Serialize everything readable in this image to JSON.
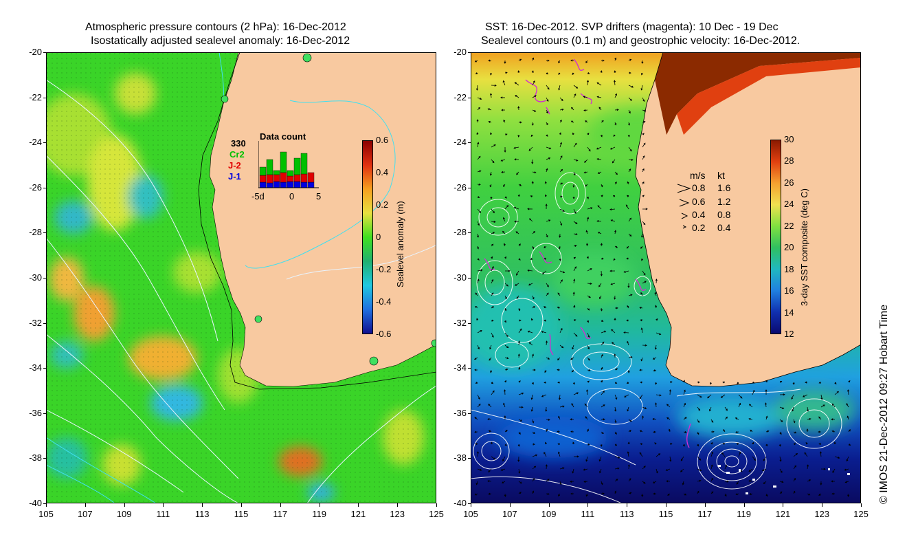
{
  "left_panel": {
    "title_line1": "Atmospheric pressure contours (2 hPa): 16-Dec-2012",
    "title_line2": "Isostatically adjusted sealevel anomaly: 16-Dec-2012",
    "colorbar": {
      "title": "Sealevel anomaly (m)",
      "ticks": [
        "0.6",
        "0.4",
        "0.2",
        "0",
        "-0.2",
        "-0.4",
        "-0.6"
      ],
      "colors": [
        "#8b0000",
        "#e03010",
        "#f5a020",
        "#e8e040",
        "#40e020",
        "#20b070",
        "#20c8e0",
        "#2070e0",
        "#101090"
      ]
    },
    "inset": {
      "title": "Data count",
      "count": "330",
      "missions": [
        "Cr2",
        "J-2",
        "J-1"
      ],
      "mission_colors": [
        "#00c000",
        "#e00000",
        "#0000e0"
      ],
      "xticks": [
        "-5d",
        "0",
        "5"
      ]
    }
  },
  "right_panel": {
    "title_line1": "SST: 16-Dec-2012. SVP drifters (magenta): 10 Dec - 19 Dec",
    "title_line2": "Sealevel contours (0.1 m) and geostrophic velocity: 16-Dec-2012.",
    "colorbar": {
      "title": "3-day SST composite (deg C)",
      "ticks": [
        "30",
        "28",
        "26",
        "24",
        "22",
        "20",
        "18",
        "16",
        "14",
        "12"
      ],
      "colors": [
        "#8b1a00",
        "#e04010",
        "#f5a030",
        "#f0e050",
        "#80e040",
        "#30c060",
        "#20b8c0",
        "#2080e0",
        "#1030b0",
        "#0a0a70"
      ]
    },
    "velocity_legend": {
      "header_ms": "m/s",
      "header_kt": "kt",
      "rows": [
        {
          "ms": "0.8",
          "kt": "1.6"
        },
        {
          "ms": "0.6",
          "kt": "1.2"
        },
        {
          "ms": "0.4",
          "kt": "0.8"
        },
        {
          "ms": "0.2",
          "kt": "0.4"
        }
      ]
    }
  },
  "axes": {
    "y_ticks": [
      "-20",
      "-22",
      "-24",
      "-26",
      "-28",
      "-30",
      "-32",
      "-34",
      "-36",
      "-38",
      "-40"
    ],
    "x_ticks": [
      "105",
      "107",
      "109",
      "111",
      "113",
      "115",
      "117",
      "119",
      "121",
      "123",
      "125"
    ]
  },
  "copyright": "© IMOS 21-Dec-2012 09:27 Hobart Time",
  "colors": {
    "land": "#f8c9a0",
    "frame": "#000000"
  }
}
